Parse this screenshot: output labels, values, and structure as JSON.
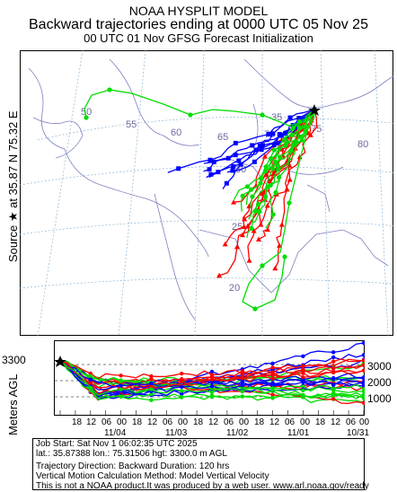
{
  "header": {
    "model": "NOAA HYSPLIT MODEL",
    "title": "Backward trajectories ending at 0000 UTC 05 Nov 25",
    "subtitle": "00 UTC 01 Nov     GFSG  Forecast Initialization"
  },
  "source_label": {
    "prefix": "Source",
    "star": "★",
    "at": "at",
    "lat": "35.87 N",
    "lon": "75.32 E"
  },
  "map": {
    "lon_labels": [
      "50",
      "55",
      "60",
      "65",
      "70",
      "75",
      "80"
    ],
    "lat_labels": [
      "35",
      "30",
      "25",
      "20"
    ]
  },
  "vertical": {
    "ylabel": "Meters AGL",
    "start_height_label": "3300",
    "y_ticks": [
      "3000",
      "2000",
      "1000"
    ],
    "time_ticks": [
      "18",
      "12",
      "06",
      "00",
      "18",
      "12",
      "06",
      "00",
      "18",
      "12",
      "06",
      "00",
      "18",
      "12",
      "06",
      "00",
      "18",
      "12",
      "06",
      "00"
    ],
    "date_labels": [
      "11/04",
      "11/03",
      "11/02",
      "11/01",
      "10/31"
    ]
  },
  "info": {
    "line1": "Job Start: Sat Nov  1 06:02:35 UTC 2025",
    "line2": "lat.: 35.87388   lon.: 75.31506   hgt: 3300.0 m AGL",
    "line3": "Trajectory Direction: Backward       Duration: 120 hrs",
    "line4": "Vertical Motion Calculation Method: Model Vertical Velocity",
    "line5": "This is not a NOAA product.It was produced by a web user. www.arl.noaa.gov/ready"
  },
  "colors": {
    "red": "#ff0000",
    "blue": "#0000ff",
    "green": "#00dd00",
    "map_line": "#7f7fc0",
    "grid": "#8cb4d2"
  }
}
